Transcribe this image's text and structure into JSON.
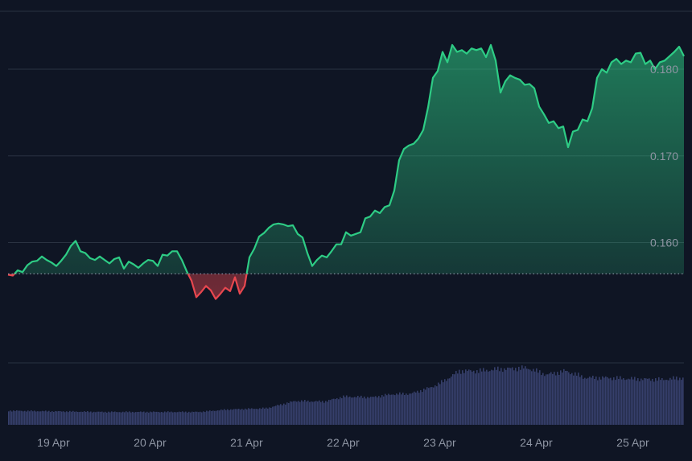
{
  "chart_data": {
    "type": "area",
    "baseline": 0.1564,
    "ylim": [
      0.1465,
      0.1865
    ],
    "y_ticks": [
      {
        "value": 0.16,
        "label": "0.160"
      },
      {
        "value": 0.17,
        "label": "0.170"
      },
      {
        "value": 0.18,
        "label": "0.180"
      }
    ],
    "x_ticks": [
      {
        "t": 0.5,
        "label": "19 Apr"
      },
      {
        "t": 1.5,
        "label": "20 Apr"
      },
      {
        "t": 2.5,
        "label": "21 Apr"
      },
      {
        "t": 3.5,
        "label": "22 Apr"
      },
      {
        "t": 4.5,
        "label": "23 Apr"
      },
      {
        "t": 5.5,
        "label": "24 Apr"
      },
      {
        "t": 6.5,
        "label": "25 Apr"
      }
    ],
    "xlim": [
      0.03,
      7.03
    ],
    "colors": {
      "up": "#2ecc85",
      "down": "#e8474f",
      "volume": "#363f6b",
      "grid": "#2a3242",
      "background": "#0f1524"
    },
    "price_series": [
      [
        0.03,
        0.1563
      ],
      [
        0.08,
        0.1562
      ],
      [
        0.13,
        0.1568
      ],
      [
        0.18,
        0.1566
      ],
      [
        0.23,
        0.1574
      ],
      [
        0.28,
        0.1578
      ],
      [
        0.33,
        0.1579
      ],
      [
        0.38,
        0.1584
      ],
      [
        0.43,
        0.158
      ],
      [
        0.48,
        0.1577
      ],
      [
        0.53,
        0.1573
      ],
      [
        0.58,
        0.1579
      ],
      [
        0.63,
        0.1586
      ],
      [
        0.68,
        0.1596
      ],
      [
        0.73,
        0.1602
      ],
      [
        0.78,
        0.159
      ],
      [
        0.83,
        0.1588
      ],
      [
        0.88,
        0.1582
      ],
      [
        0.93,
        0.158
      ],
      [
        0.98,
        0.1584
      ],
      [
        1.03,
        0.158
      ],
      [
        1.08,
        0.1576
      ],
      [
        1.13,
        0.1581
      ],
      [
        1.18,
        0.1583
      ],
      [
        1.23,
        0.157
      ],
      [
        1.28,
        0.1578
      ],
      [
        1.33,
        0.1575
      ],
      [
        1.38,
        0.1571
      ],
      [
        1.43,
        0.1576
      ],
      [
        1.48,
        0.158
      ],
      [
        1.53,
        0.1579
      ],
      [
        1.58,
        0.1573
      ],
      [
        1.63,
        0.1586
      ],
      [
        1.68,
        0.1585
      ],
      [
        1.73,
        0.159
      ],
      [
        1.78,
        0.159
      ],
      [
        1.83,
        0.158
      ],
      [
        1.88,
        0.1567
      ],
      [
        1.93,
        0.1556
      ],
      [
        1.98,
        0.1537
      ],
      [
        2.03,
        0.1543
      ],
      [
        2.08,
        0.155
      ],
      [
        2.13,
        0.1545
      ],
      [
        2.18,
        0.1535
      ],
      [
        2.23,
        0.1541
      ],
      [
        2.28,
        0.1548
      ],
      [
        2.33,
        0.1544
      ],
      [
        2.38,
        0.156
      ],
      [
        2.43,
        0.1541
      ],
      [
        2.48,
        0.155
      ],
      [
        2.53,
        0.1583
      ],
      [
        2.58,
        0.1593
      ],
      [
        2.63,
        0.1607
      ],
      [
        2.68,
        0.1611
      ],
      [
        2.73,
        0.1617
      ],
      [
        2.78,
        0.1621
      ],
      [
        2.83,
        0.1622
      ],
      [
        2.88,
        0.1621
      ],
      [
        2.93,
        0.1619
      ],
      [
        2.98,
        0.162
      ],
      [
        3.03,
        0.161
      ],
      [
        3.08,
        0.1606
      ],
      [
        3.13,
        0.1588
      ],
      [
        3.18,
        0.1573
      ],
      [
        3.23,
        0.158
      ],
      [
        3.28,
        0.1585
      ],
      [
        3.33,
        0.1583
      ],
      [
        3.38,
        0.159
      ],
      [
        3.43,
        0.1598
      ],
      [
        3.48,
        0.1598
      ],
      [
        3.53,
        0.1612
      ],
      [
        3.58,
        0.1608
      ],
      [
        3.63,
        0.161
      ],
      [
        3.68,
        0.1612
      ],
      [
        3.73,
        0.1628
      ],
      [
        3.78,
        0.163
      ],
      [
        3.83,
        0.1637
      ],
      [
        3.88,
        0.1634
      ],
      [
        3.93,
        0.1641
      ],
      [
        3.98,
        0.1643
      ],
      [
        4.03,
        0.166
      ],
      [
        4.08,
        0.1695
      ],
      [
        4.13,
        0.1708
      ],
      [
        4.18,
        0.1712
      ],
      [
        4.23,
        0.1714
      ],
      [
        4.28,
        0.172
      ],
      [
        4.33,
        0.173
      ],
      [
        4.38,
        0.1756
      ],
      [
        4.43,
        0.179
      ],
      [
        4.48,
        0.1798
      ],
      [
        4.53,
        0.182
      ],
      [
        4.58,
        0.1808
      ],
      [
        4.63,
        0.1828
      ],
      [
        4.68,
        0.182
      ],
      [
        4.73,
        0.1822
      ],
      [
        4.78,
        0.1818
      ],
      [
        4.83,
        0.1824
      ],
      [
        4.88,
        0.1822
      ],
      [
        4.93,
        0.1824
      ],
      [
        4.98,
        0.1814
      ],
      [
        5.03,
        0.1828
      ],
      [
        5.08,
        0.181
      ],
      [
        5.13,
        0.1773
      ],
      [
        5.18,
        0.1786
      ],
      [
        5.23,
        0.1793
      ],
      [
        5.28,
        0.179
      ],
      [
        5.33,
        0.1788
      ],
      [
        5.38,
        0.1782
      ],
      [
        5.43,
        0.1783
      ],
      [
        5.48,
        0.1778
      ],
      [
        5.53,
        0.1757
      ],
      [
        5.58,
        0.1748
      ],
      [
        5.63,
        0.1738
      ],
      [
        5.68,
        0.174
      ],
      [
        5.73,
        0.1732
      ],
      [
        5.78,
        0.1734
      ],
      [
        5.83,
        0.171
      ],
      [
        5.88,
        0.1728
      ],
      [
        5.93,
        0.173
      ],
      [
        5.98,
        0.1742
      ],
      [
        6.03,
        0.174
      ],
      [
        6.08,
        0.1755
      ],
      [
        6.13,
        0.179
      ],
      [
        6.18,
        0.18
      ],
      [
        6.23,
        0.1796
      ],
      [
        6.28,
        0.1808
      ],
      [
        6.33,
        0.1812
      ],
      [
        6.38,
        0.1806
      ],
      [
        6.43,
        0.181
      ],
      [
        6.48,
        0.1808
      ],
      [
        6.53,
        0.1818
      ],
      [
        6.58,
        0.1819
      ],
      [
        6.63,
        0.1806
      ],
      [
        6.68,
        0.181
      ],
      [
        6.73,
        0.18
      ],
      [
        6.78,
        0.1808
      ],
      [
        6.83,
        0.181
      ],
      [
        6.88,
        0.1815
      ],
      [
        6.93,
        0.182
      ],
      [
        6.98,
        0.1826
      ],
      [
        7.03,
        0.1815
      ]
    ],
    "volume": {
      "ylim": [
        0,
        1
      ],
      "series": [
        [
          0.03,
          0.23
        ],
        [
          0.5,
          0.22
        ],
        [
          1.0,
          0.21
        ],
        [
          1.5,
          0.21
        ],
        [
          2.0,
          0.21
        ],
        [
          2.3,
          0.25
        ],
        [
          2.7,
          0.27
        ],
        [
          3.0,
          0.39
        ],
        [
          3.3,
          0.38
        ],
        [
          3.5,
          0.46
        ],
        [
          3.8,
          0.45
        ],
        [
          4.0,
          0.5
        ],
        [
          4.2,
          0.51
        ],
        [
          4.4,
          0.61
        ],
        [
          4.5,
          0.68
        ],
        [
          4.7,
          0.88
        ],
        [
          4.9,
          0.88
        ],
        [
          5.1,
          0.91
        ],
        [
          5.4,
          0.93
        ],
        [
          5.6,
          0.82
        ],
        [
          5.8,
          0.88
        ],
        [
          6.0,
          0.77
        ],
        [
          6.2,
          0.77
        ],
        [
          6.5,
          0.75
        ],
        [
          6.8,
          0.74
        ],
        [
          7.03,
          0.77
        ]
      ]
    }
  }
}
